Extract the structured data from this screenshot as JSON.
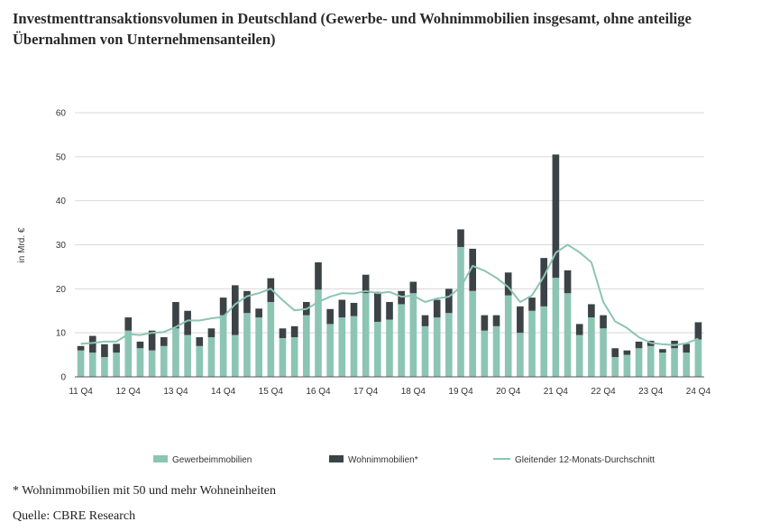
{
  "title": "Investmenttransaktionsvolumen in Deutschland (Gewerbe- und Wohnimmobilien insgesamt, ohne anteilige Übernahmen von Unternehmensanteilen)",
  "footnote": "* Wohnimmobilien mit 50 und mehr Wohneinheiten",
  "source": "Quelle: CBRE Research",
  "colors": {
    "gewerbe": "#8cc5b3",
    "wohnen": "#3c4347",
    "average": "#8cc5b3",
    "grid": "#d9d9d9",
    "axis": "#555555"
  },
  "chart_data": {
    "type": "bar",
    "stacked": true,
    "ylabel": "in Mrd. €",
    "ylim": [
      0,
      60
    ],
    "yticks": [
      0,
      10,
      20,
      30,
      40,
      50,
      60
    ],
    "xtick_labels": [
      "11 Q4",
      "12 Q4",
      "13 Q4",
      "14 Q4",
      "15 Q4",
      "16 Q4",
      "17 Q4",
      "18 Q4",
      "19 Q4",
      "20 Q4",
      "21 Q4",
      "22 Q4",
      "23 Q4",
      "24 Q4"
    ],
    "categories": [
      "11 Q4",
      "12 Q1",
      "12 Q2",
      "12 Q3",
      "12 Q4",
      "13 Q1",
      "13 Q2",
      "13 Q3",
      "13 Q4",
      "14 Q1",
      "14 Q2",
      "14 Q3",
      "14 Q4",
      "15 Q1",
      "15 Q2",
      "15 Q3",
      "15 Q4",
      "16 Q1",
      "16 Q2",
      "16 Q3",
      "16 Q4",
      "17 Q1",
      "17 Q2",
      "17 Q3",
      "17 Q4",
      "18 Q1",
      "18 Q2",
      "18 Q3",
      "18 Q4",
      "19 Q1",
      "19 Q2",
      "19 Q3",
      "19 Q4",
      "20 Q1",
      "20 Q2",
      "20 Q3",
      "20 Q4",
      "21 Q1",
      "21 Q2",
      "21 Q3",
      "21 Q4",
      "22 Q1",
      "22 Q2",
      "22 Q3",
      "22 Q4",
      "23 Q1",
      "23 Q2",
      "23 Q3",
      "23 Q4",
      "24 Q1",
      "24 Q2",
      "24 Q3",
      "24 Q4"
    ],
    "series": [
      {
        "name": "Gewerbeimmobilien",
        "values": [
          6.0,
          5.5,
          4.5,
          5.5,
          10.5,
          6.5,
          6.0,
          7.0,
          11.0,
          9.5,
          7.0,
          9.0,
          14.0,
          9.5,
          14.5,
          13.5,
          17.0,
          8.8,
          9.0,
          14.0,
          19.8,
          12.0,
          13.5,
          13.8,
          19.0,
          12.5,
          13.0,
          16.5,
          19.0,
          11.5,
          13.5,
          14.5,
          29.5,
          19.5,
          10.5,
          11.5,
          18.5,
          10.0,
          15.0,
          16.0,
          22.5,
          19.0,
          9.5,
          13.5,
          11.0,
          4.5,
          5.0,
          6.5,
          7.0,
          5.5,
          6.5,
          5.5,
          8.5
        ]
      },
      {
        "name": "Wohnimmobilien*",
        "values": [
          1.0,
          3.8,
          2.9,
          2.0,
          3.0,
          1.5,
          4.5,
          2.0,
          6.0,
          5.5,
          2.0,
          2.0,
          4.0,
          11.3,
          5.0,
          2.0,
          5.4,
          2.2,
          2.5,
          3.0,
          6.2,
          3.4,
          4.0,
          3.0,
          4.2,
          6.8,
          4.0,
          3.0,
          2.6,
          2.5,
          4.0,
          5.5,
          4.0,
          9.6,
          3.5,
          2.5,
          5.2,
          6.0,
          3.0,
          11.0,
          28.0,
          5.2,
          2.5,
          3.0,
          3.0,
          2.0,
          1.0,
          1.5,
          1.2,
          0.8,
          1.7,
          2.0,
          3.9
        ]
      },
      {
        "name": "Gleitender 12-Monats-Durchschnitt",
        "type": "line",
        "values": [
          7.5,
          7.7,
          8.0,
          8.0,
          9.7,
          9.5,
          10.0,
          10.2,
          11.3,
          12.8,
          12.8,
          13.3,
          13.6,
          16.5,
          18.3,
          19.0,
          20.0,
          17.4,
          15.1,
          15.4,
          17.0,
          18.2,
          19.0,
          18.9,
          19.5,
          19.0,
          19.3,
          18.2,
          18.5,
          17.0,
          17.8,
          18.2,
          20.4,
          25.2,
          24.1,
          22.5,
          20.4,
          17.0,
          18.5,
          22.8,
          28.2,
          30.0,
          28.3,
          26.0,
          17.0,
          12.6,
          11.1,
          9.0,
          7.7,
          7.4,
          7.2,
          7.6,
          8.7
        ]
      }
    ],
    "legend": {
      "placement": "bottom",
      "items": [
        "Gewerbeimmobilien",
        "Wohnimmobilien*",
        "Gleitender 12-Monats-Durchschnitt"
      ]
    },
    "grid": true
  }
}
